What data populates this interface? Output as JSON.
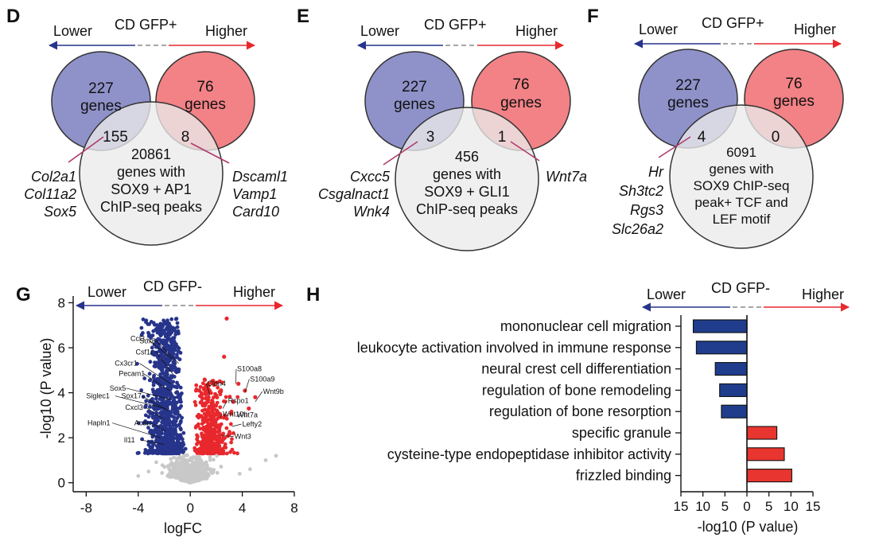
{
  "colors": {
    "lower": "#27348b",
    "higher": "#e8282d",
    "venn_lower": "#8f92c9",
    "venn_higher": "#f28286",
    "venn_chip": "#ebebeb",
    "pink_line": "#b03a6d",
    "bar_blue": "#1f3d8c",
    "bar_red": "#e8352f",
    "dot_grey": "#c8c8c8"
  },
  "panels": {
    "D": {
      "letter": "D",
      "header": {
        "lower": "Lower",
        "middle": "CD GFP+",
        "higher": "Higher"
      },
      "lower_circle": {
        "count": "227",
        "unit": "genes"
      },
      "higher_circle": {
        "count": "76",
        "unit": "genes"
      },
      "overlap_lower": "155",
      "overlap_higher": "8",
      "chip_lines": [
        "20861",
        "genes with",
        "SOX9 + AP1",
        "ChIP-seq peaks"
      ],
      "genes_left": [
        "Col2a1",
        "Col11a2",
        "Sox5"
      ],
      "genes_right": [
        "Dscaml1",
        "Vamp1",
        "Card10"
      ]
    },
    "E": {
      "letter": "E",
      "header": {
        "lower": "Lower",
        "middle": "CD GFP+",
        "higher": "Higher"
      },
      "lower_circle": {
        "count": "227",
        "unit": "genes"
      },
      "higher_circle": {
        "count": "76",
        "unit": "genes"
      },
      "overlap_lower": "3",
      "overlap_higher": "1",
      "chip_lines": [
        "456",
        "genes with",
        "SOX9 + GLI1",
        "ChIP-seq peaks"
      ],
      "genes_left": [
        "Cxcc5",
        "Csgalnact1",
        "Wnk4"
      ],
      "genes_right": [
        "Wnt7a"
      ]
    },
    "F": {
      "letter": "F",
      "header": {
        "lower": "Lower",
        "middle": "CD GFP+",
        "higher": "Higher"
      },
      "lower_circle": {
        "count": "227",
        "unit": "genes"
      },
      "higher_circle": {
        "count": "76",
        "unit": "genes"
      },
      "overlap_lower": "4",
      "overlap_higher": "0",
      "chip_lines": [
        "6091",
        "genes with",
        "SOX9 ChIP-seq",
        "peak+ TCF and",
        "LEF motif"
      ],
      "genes_left": [
        "Hr",
        "Sh3tc2",
        "Rgs3",
        "Slc26a2"
      ],
      "genes_right": []
    }
  },
  "chart_data": [
    {
      "type": "scatter",
      "panel": "G",
      "header": {
        "lower": "Lower",
        "middle": "CD GFP-",
        "higher": "Higher"
      },
      "xlabel": "logFC",
      "ylabel": "-log10 (P value)",
      "xlim": [
        -9,
        8
      ],
      "ylim": [
        -0.4,
        8.3
      ],
      "xticks": [
        -8,
        -4,
        0,
        4,
        8
      ],
      "yticks": [
        0,
        2,
        4,
        6,
        8
      ],
      "labeled_points_lower": [
        {
          "name": "Ccl3",
          "x": -1.4,
          "y": 5.5
        },
        {
          "name": "Sox6",
          "x": -0.9,
          "y": 5.3
        },
        {
          "name": "Csf1r",
          "x": -1.3,
          "y": 4.8
        },
        {
          "name": "Cx3cr1",
          "x": -1.5,
          "y": 4.4
        },
        {
          "name": "Pecam1",
          "x": -1.6,
          "y": 4.1
        },
        {
          "name": "Sox5",
          "x": -1.5,
          "y": 3.7
        },
        {
          "name": "Sox17",
          "x": -1.7,
          "y": 3.2
        },
        {
          "name": "Siglec1",
          "x": -1.9,
          "y": 3.3
        },
        {
          "name": "Cxcl3",
          "x": -2.0,
          "y": 2.8
        },
        {
          "name": "Acan",
          "x": -1.9,
          "y": 2.3
        },
        {
          "name": "Hapln1",
          "x": -2.3,
          "y": 2.0
        },
        {
          "name": "Il11",
          "x": -2.0,
          "y": 1.7
        }
      ],
      "labeled_points_higher": [
        {
          "name": "S100a8",
          "x": 3.5,
          "y": 4.4
        },
        {
          "name": "Cldn4",
          "x": 1.5,
          "y": 3.9
        },
        {
          "name": "S100a9",
          "x": 4.2,
          "y": 4.0
        },
        {
          "name": "Wnt9b",
          "x": 5.0,
          "y": 3.6
        },
        {
          "name": "Rspo1",
          "x": 2.5,
          "y": 3.3
        },
        {
          "name": "Wnt10b",
          "x": 2.3,
          "y": 2.9
        },
        {
          "name": "Wnt7a",
          "x": 3.5,
          "y": 3.0
        },
        {
          "name": "Lefty2",
          "x": 3.2,
          "y": 2.5
        },
        {
          "name": "Wnt3",
          "x": 2.4,
          "y": 2.1
        }
      ]
    },
    {
      "type": "bar",
      "orientation": "horizontal",
      "panel": "H",
      "header": {
        "lower": "Lower",
        "middle": "CD GFP-",
        "higher": "Higher"
      },
      "xlabel": "-log10 (P value)",
      "xlim": [
        -15,
        15
      ],
      "xticks": [
        -15,
        -10,
        -5,
        0,
        5,
        10,
        15
      ],
      "xtick_labels": [
        "15",
        "10",
        "5",
        "0",
        "5",
        "10",
        "15"
      ],
      "categories": [
        "mononuclear cell migration",
        "leukocyte activation involved in immune response",
        "neural crest cell differentiation",
        "regulation of bone remodeling",
        "regulation of bone resorption",
        "specific granule",
        "cysteine-type endopeptidase inhibitor activity",
        "frizzled binding"
      ],
      "values": [
        -12.2,
        -11.5,
        -7.2,
        -6.2,
        -5.8,
        6.8,
        8.5,
        10.2
      ],
      "direction": [
        "Lower",
        "Lower",
        "Lower",
        "Lower",
        "Lower",
        "Higher",
        "Higher",
        "Higher"
      ]
    }
  ]
}
